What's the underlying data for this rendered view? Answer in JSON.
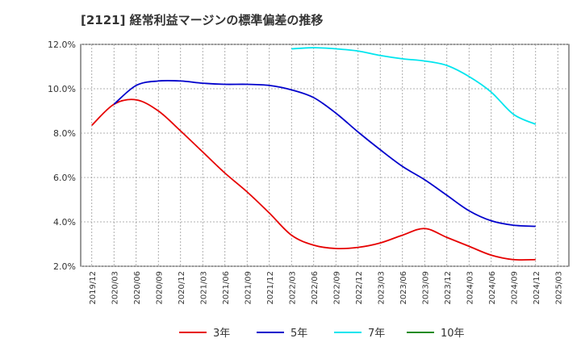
{
  "chart_data": {
    "type": "line",
    "title": "[2121]  経常利益マージンの標準偏差の推移",
    "xlabel": "",
    "ylabel": "",
    "ylim": [
      2.0,
      12.0
    ],
    "y_ticks": [
      "2.0%",
      "4.0%",
      "6.0%",
      "8.0%",
      "10.0%",
      "12.0%"
    ],
    "x_ticks": [
      "2019/12",
      "2020/03",
      "2020/06",
      "2020/09",
      "2020/12",
      "2021/03",
      "2021/06",
      "2021/09",
      "2021/12",
      "2022/03",
      "2022/06",
      "2022/09",
      "2022/12",
      "2023/03",
      "2023/06",
      "2023/09",
      "2023/12",
      "2024/03",
      "2024/06",
      "2024/09",
      "2024/12",
      "2025/03"
    ],
    "grid": true,
    "legend_position": "bottom",
    "series": [
      {
        "name": "3年",
        "color": "#e60000",
        "points": [
          [
            "2019/12",
            8.35
          ],
          [
            "2020/03",
            9.3
          ],
          [
            "2020/06",
            9.5
          ],
          [
            "2020/09",
            9.0
          ],
          [
            "2020/12",
            8.1
          ],
          [
            "2021/03",
            7.15
          ],
          [
            "2021/06",
            6.2
          ],
          [
            "2021/09",
            5.35
          ],
          [
            "2021/12",
            4.4
          ],
          [
            "2022/03",
            3.4
          ],
          [
            "2022/06",
            2.95
          ],
          [
            "2022/09",
            2.8
          ],
          [
            "2022/12",
            2.85
          ],
          [
            "2023/03",
            3.05
          ],
          [
            "2023/06",
            3.4
          ],
          [
            "2023/09",
            3.7
          ],
          [
            "2023/12",
            3.3
          ],
          [
            "2024/03",
            2.9
          ],
          [
            "2024/06",
            2.5
          ],
          [
            "2024/09",
            2.3
          ],
          [
            "2024/12",
            2.3
          ]
        ]
      },
      {
        "name": "5年",
        "color": "#0000cc",
        "points": [
          [
            "2020/03",
            9.3
          ],
          [
            "2020/06",
            10.15
          ],
          [
            "2020/09",
            10.35
          ],
          [
            "2020/12",
            10.35
          ],
          [
            "2021/03",
            10.25
          ],
          [
            "2021/06",
            10.2
          ],
          [
            "2021/09",
            10.2
          ],
          [
            "2021/12",
            10.15
          ],
          [
            "2022/03",
            9.95
          ],
          [
            "2022/06",
            9.6
          ],
          [
            "2022/09",
            8.9
          ],
          [
            "2022/12",
            8.05
          ],
          [
            "2023/03",
            7.25
          ],
          [
            "2023/06",
            6.5
          ],
          [
            "2023/09",
            5.9
          ],
          [
            "2023/12",
            5.2
          ],
          [
            "2024/03",
            4.5
          ],
          [
            "2024/06",
            4.05
          ],
          [
            "2024/09",
            3.85
          ],
          [
            "2024/12",
            3.8
          ]
        ]
      },
      {
        "name": "7年",
        "color": "#00e5ee",
        "points": [
          [
            "2022/03",
            11.8
          ],
          [
            "2022/06",
            11.85
          ],
          [
            "2022/09",
            11.8
          ],
          [
            "2022/12",
            11.7
          ],
          [
            "2023/03",
            11.5
          ],
          [
            "2023/06",
            11.35
          ],
          [
            "2023/09",
            11.25
          ],
          [
            "2023/12",
            11.05
          ],
          [
            "2024/03",
            10.55
          ],
          [
            "2024/06",
            9.85
          ],
          [
            "2024/09",
            8.85
          ],
          [
            "2024/12",
            8.4
          ]
        ]
      },
      {
        "name": "10年",
        "color": "#228b22",
        "points": []
      }
    ]
  }
}
